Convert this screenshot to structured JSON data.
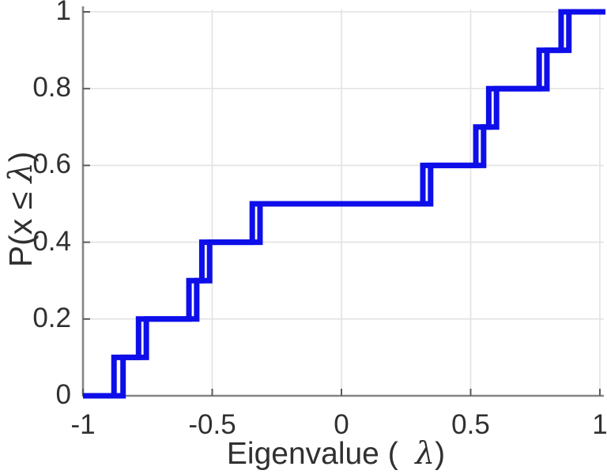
{
  "chart_data": {
    "type": "line",
    "subtype": "ecdf_step",
    "title": "",
    "xlabel": "Eigenvalue (  λ)",
    "ylabel": "P(x ≤ λ)",
    "xlim": [
      -1,
      1
    ],
    "ylim": [
      0,
      1
    ],
    "grid": true,
    "legend": "none",
    "x_ticks": [
      -1,
      -0.5,
      0,
      0.5,
      1
    ],
    "x_tick_labels": [
      "-1",
      "-0.5",
      "0",
      "0.5",
      "1"
    ],
    "y_ticks": [
      0,
      0.2,
      0.4,
      0.6,
      0.8,
      1
    ],
    "y_tick_labels": [
      "0",
      "0.2",
      "0.4",
      "0.6",
      "0.8",
      "1"
    ],
    "series": [
      {
        "name": "ecdf-curve-1",
        "start": {
          "x": -1,
          "y": 0
        },
        "jumps_x": [
          -0.88,
          -0.785,
          -0.59,
          -0.54,
          -0.345,
          0.315,
          0.52,
          0.57,
          0.765,
          0.85
        ],
        "levels": [
          0.1,
          0.2,
          0.3,
          0.4,
          0.5,
          0.6,
          0.7,
          0.8,
          0.9,
          1.0
        ]
      },
      {
        "name": "ecdf-curve-2",
        "start": {
          "x": -1,
          "y": 0
        },
        "jumps_x": [
          -0.845,
          -0.755,
          -0.56,
          -0.51,
          -0.315,
          0.345,
          0.55,
          0.6,
          0.795,
          0.88
        ],
        "levels": [
          0.1,
          0.2,
          0.3,
          0.4,
          0.5,
          0.6,
          0.7,
          0.8,
          0.9,
          1.0
        ]
      }
    ]
  },
  "labels": {
    "ylabel_parts": {
      "pre": "P(x ",
      "leq": "≤",
      "sp": " ",
      "sym": "λ",
      "post": ")"
    },
    "xlabel_parts": {
      "pre": "Eigenvalue (",
      "gap": "  ",
      "sym": "λ",
      "post": ")"
    }
  },
  "colors": {
    "line": "#0e0ee9",
    "spine": "#858585",
    "tick": "#5a5a5a",
    "grid": "#e3e3e3",
    "text": "#303030",
    "background": "#ffffff"
  }
}
